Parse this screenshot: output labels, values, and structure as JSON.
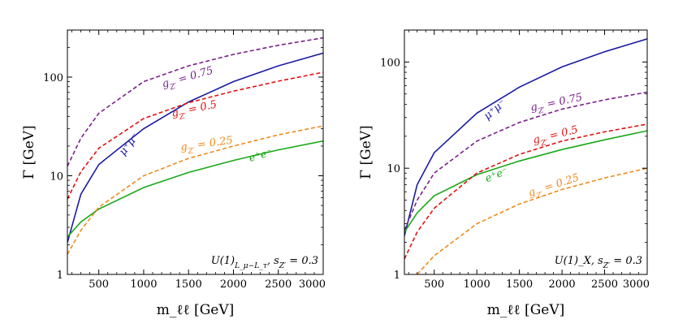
{
  "figure": {
    "panels": [
      {
        "xlabel": "m_ℓℓ [GeV]",
        "ylabel": "Γ [GeV]",
        "annotation": "U(1)_{L_μ−L_τ}, s_{Z′} = 0.3",
        "label_mumu": "μ⁺μ⁻",
        "label_ee": "e⁺e⁻",
        "label_g075": "g_{Z′} = 0.75",
        "label_g05": "g_{Z′} = 0.5",
        "label_g025": "g_{Z′} = 0.25"
      },
      {
        "xlabel": "m_ℓℓ [GeV]",
        "ylabel": "Γ [GeV]",
        "annotation": "U(1)_X, s_{Z′} = 0.3",
        "label_mumu": "μ⁺μ⁻",
        "label_ee": "e⁺e⁻",
        "label_g075": "g_{Z′} = 0.75",
        "label_g05": "g_{Z′} = 0.5",
        "label_g025": "g_{Z′} = 0.25"
      }
    ]
  },
  "colors": {
    "mumu": "#1a1aa6",
    "ee": "#1aa81a",
    "g075": "#7b1f8c",
    "g05": "#e01010",
    "g025": "#f08a1a"
  },
  "chart_data": [
    {
      "type": "line",
      "xlabel": "m_ℓℓ [GeV]",
      "ylabel": "Γ [GeV]",
      "xlim": [
        150,
        3000
      ],
      "ylim": [
        1,
        300
      ],
      "yscale": "log",
      "xticks": [
        500,
        1000,
        1500,
        2000,
        2500,
        3000
      ],
      "yticks": [
        1,
        10,
        100
      ],
      "series": [
        {
          "name": "μ⁺μ⁻",
          "style": "solid",
          "color": "#1a1aa6",
          "x": [
            150,
            300,
            500,
            1000,
            1500,
            2000,
            2500,
            3000
          ],
          "y": [
            2.1,
            6.5,
            13,
            30,
            56,
            90,
            130,
            175
          ]
        },
        {
          "name": "e⁺e⁻",
          "style": "solid",
          "color": "#1aa81a",
          "x": [
            150,
            300,
            500,
            1000,
            1500,
            2000,
            2500,
            3000
          ],
          "y": [
            2.4,
            3.4,
            4.6,
            7.6,
            10.8,
            14.3,
            18.3,
            22.5
          ]
        },
        {
          "name": "g_{Z′} = 0.75",
          "style": "dashed",
          "color": "#7b1f8c",
          "x": [
            150,
            300,
            500,
            1000,
            1500,
            2000,
            2500,
            3000
          ],
          "y": [
            12.5,
            24,
            43,
            90,
            130,
            170,
            210,
            250
          ]
        },
        {
          "name": "g_{Z′} = 0.5",
          "style": "dashed",
          "color": "#e01010",
          "x": [
            150,
            300,
            500,
            1000,
            1500,
            2000,
            2500,
            3000
          ],
          "y": [
            5.8,
            11,
            19,
            38,
            55,
            72,
            91,
            112
          ]
        },
        {
          "name": "g_{Z′} = 0.25",
          "style": "dashed",
          "color": "#f08a1a",
          "x": [
            150,
            300,
            500,
            1000,
            1500,
            2000,
            2500,
            3000
          ],
          "y": [
            1.6,
            2.8,
            4.8,
            10,
            15,
            20,
            26,
            32
          ]
        }
      ]
    },
    {
      "type": "line",
      "xlabel": "m_ℓℓ [GeV]",
      "ylabel": "Γ [GeV]",
      "xlim": [
        150,
        3000
      ],
      "ylim": [
        1,
        200
      ],
      "yscale": "log",
      "xticks": [
        500,
        1000,
        1500,
        2000,
        2500,
        3000
      ],
      "yticks": [
        1,
        10,
        100
      ],
      "series": [
        {
          "name": "μ⁺μ⁻",
          "style": "solid",
          "color": "#1a1aa6",
          "x": [
            150,
            300,
            500,
            1000,
            1500,
            2000,
            2500,
            3000
          ],
          "y": [
            2.3,
            7,
            14,
            33,
            58,
            90,
            125,
            165
          ]
        },
        {
          "name": "e⁺e⁻",
          "style": "solid",
          "color": "#1aa81a",
          "x": [
            150,
            300,
            500,
            1000,
            1500,
            2000,
            2500,
            3000
          ],
          "y": [
            2.5,
            3.8,
            5.5,
            8.7,
            11.7,
            15,
            18.5,
            22.5
          ]
        },
        {
          "name": "g_{Z′} = 0.75",
          "style": "dashed",
          "color": "#7b1f8c",
          "x": [
            150,
            300,
            500,
            1000,
            1500,
            2000,
            2500,
            3000
          ],
          "y": [
            2.6,
            5,
            9,
            18,
            27,
            36,
            44,
            52
          ]
        },
        {
          "name": "g_{Z′} = 0.5",
          "style": "dashed",
          "color": "#e01010",
          "x": [
            150,
            300,
            500,
            1000,
            1500,
            2000,
            2500,
            3000
          ],
          "y": [
            1.4,
            2.5,
            4.2,
            9,
            13.5,
            18,
            22,
            26
          ]
        },
        {
          "name": "g_{Z′} = 0.25",
          "style": "dashed",
          "color": "#f08a1a",
          "x": [
            300,
            500,
            1000,
            1500,
            2000,
            2500,
            3000
          ],
          "y": [
            1.0,
            1.5,
            3.0,
            4.6,
            6.3,
            8.1,
            10
          ]
        }
      ]
    }
  ]
}
